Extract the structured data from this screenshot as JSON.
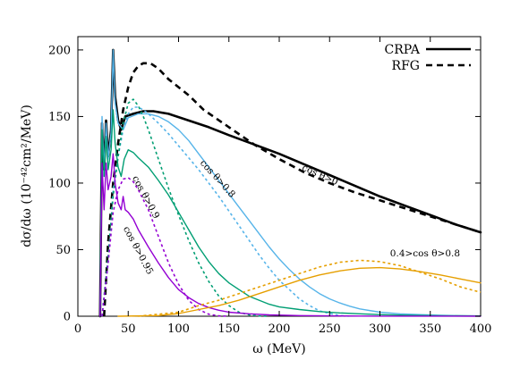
{
  "chart_data": {
    "type": "line",
    "xlabel": "ω (MeV)",
    "ylabel": "dσ/dω (10⁻⁴²cm²/MeV)",
    "xlim": [
      0,
      400
    ],
    "ylim": [
      0,
      210
    ],
    "xticks": [
      0,
      50,
      100,
      150,
      200,
      250,
      300,
      350,
      400
    ],
    "yticks": [
      0,
      50,
      100,
      150,
      200
    ],
    "grid": false,
    "legend_position": "top-right",
    "legend": [
      {
        "label": "CRPA",
        "style": "solid"
      },
      {
        "label": "RFG",
        "style": "dashed"
      }
    ],
    "annotations": [
      {
        "text": "cos θ>0",
        "x": 222,
        "y": 110,
        "rotate": 24
      },
      {
        "text": "cos θ>0.8",
        "x": 121,
        "y": 115,
        "rotate": 48
      },
      {
        "text": "cos θ>0.9",
        "x": 54,
        "y": 104,
        "rotate": 62
      },
      {
        "text": "cos θ>0.95",
        "x": 45,
        "y": 66,
        "rotate": 62
      },
      {
        "text": "0.4>cos θ>0.8",
        "x": 310,
        "y": 45,
        "rotate": 0
      }
    ],
    "series": [
      {
        "label": "cos θ>0",
        "model": "CRPA",
        "color": "#000000",
        "style": "solid",
        "width": 2.6,
        "points": [
          [
            22,
            0
          ],
          [
            24,
            145
          ],
          [
            26,
            110
          ],
          [
            28,
            147
          ],
          [
            30,
            120
          ],
          [
            33,
            140
          ],
          [
            35,
            200
          ],
          [
            37,
            165
          ],
          [
            40,
            147
          ],
          [
            43,
            140
          ],
          [
            47,
            150
          ],
          [
            55,
            152
          ],
          [
            65,
            154
          ],
          [
            75,
            154
          ],
          [
            90,
            152
          ],
          [
            110,
            147
          ],
          [
            130,
            142
          ],
          [
            150,
            136
          ],
          [
            175,
            129
          ],
          [
            200,
            122
          ],
          [
            225,
            114
          ],
          [
            250,
            106
          ],
          [
            275,
            98
          ],
          [
            300,
            90
          ],
          [
            325,
            83
          ],
          [
            350,
            76
          ],
          [
            375,
            69
          ],
          [
            400,
            63
          ]
        ]
      },
      {
        "label": "cos θ>0",
        "model": "RFG",
        "color": "#000000",
        "style": "dashed",
        "width": 2.6,
        "points": [
          [
            26,
            0
          ],
          [
            30,
            55
          ],
          [
            35,
            100
          ],
          [
            40,
            130
          ],
          [
            45,
            155
          ],
          [
            50,
            172
          ],
          [
            55,
            183
          ],
          [
            60,
            188
          ],
          [
            65,
            190
          ],
          [
            72,
            190
          ],
          [
            80,
            186
          ],
          [
            90,
            178
          ],
          [
            100,
            172
          ],
          [
            110,
            166
          ],
          [
            125,
            155
          ],
          [
            150,
            142
          ],
          [
            175,
            129
          ],
          [
            200,
            118
          ],
          [
            225,
            108
          ],
          [
            250,
            100
          ],
          [
            275,
            93
          ],
          [
            300,
            87
          ],
          [
            325,
            81
          ],
          [
            350,
            75
          ],
          [
            375,
            69
          ],
          [
            400,
            63
          ]
        ]
      },
      {
        "label": "cos θ>0.8",
        "model": "CRPA",
        "color": "#56B4E9",
        "style": "solid",
        "width": 1.4,
        "points": [
          [
            22,
            0
          ],
          [
            24,
            150
          ],
          [
            26,
            110
          ],
          [
            28,
            145
          ],
          [
            30,
            118
          ],
          [
            33,
            138
          ],
          [
            35,
            200
          ],
          [
            37,
            160
          ],
          [
            40,
            145
          ],
          [
            45,
            140
          ],
          [
            50,
            149
          ],
          [
            60,
            152
          ],
          [
            70,
            152
          ],
          [
            80,
            150
          ],
          [
            90,
            146
          ],
          [
            100,
            140
          ],
          [
            110,
            132
          ],
          [
            120,
            122
          ],
          [
            130,
            112
          ],
          [
            140,
            102
          ],
          [
            150,
            92
          ],
          [
            160,
            82
          ],
          [
            170,
            72
          ],
          [
            180,
            62
          ],
          [
            190,
            52
          ],
          [
            200,
            43
          ],
          [
            210,
            35
          ],
          [
            220,
            28
          ],
          [
            230,
            22
          ],
          [
            240,
            17
          ],
          [
            250,
            13
          ],
          [
            260,
            10
          ],
          [
            270,
            7.5
          ],
          [
            280,
            5.5
          ],
          [
            300,
            3
          ],
          [
            320,
            1.8
          ],
          [
            340,
            1.2
          ],
          [
            360,
            0.7
          ],
          [
            380,
            0.4
          ],
          [
            400,
            0.2
          ]
        ]
      },
      {
        "label": "cos θ>0.8",
        "model": "RFG",
        "color": "#56B4E9",
        "style": "dotted",
        "width": 1.6,
        "points": [
          [
            24,
            0
          ],
          [
            30,
            40
          ],
          [
            35,
            95
          ],
          [
            40,
            120
          ],
          [
            45,
            140
          ],
          [
            50,
            152
          ],
          [
            55,
            157
          ],
          [
            60,
            157
          ],
          [
            65,
            155
          ],
          [
            70,
            152
          ],
          [
            80,
            145
          ],
          [
            90,
            137
          ],
          [
            100,
            128
          ],
          [
            110,
            119
          ],
          [
            120,
            110
          ],
          [
            130,
            100
          ],
          [
            140,
            90
          ],
          [
            150,
            79
          ],
          [
            160,
            68
          ],
          [
            170,
            57
          ],
          [
            180,
            46
          ],
          [
            190,
            36
          ],
          [
            200,
            27
          ],
          [
            210,
            20
          ],
          [
            220,
            13
          ],
          [
            230,
            8
          ],
          [
            240,
            4
          ],
          [
            250,
            2
          ],
          [
            260,
            0.5
          ],
          [
            270,
            0
          ]
        ]
      },
      {
        "label": "cos θ>0.9",
        "model": "CRPA",
        "color": "#009E73",
        "style": "solid",
        "width": 1.4,
        "points": [
          [
            22,
            0
          ],
          [
            24,
            140
          ],
          [
            26,
            105
          ],
          [
            28,
            135
          ],
          [
            30,
            110
          ],
          [
            33,
            125
          ],
          [
            35,
            155
          ],
          [
            37,
            130
          ],
          [
            40,
            112
          ],
          [
            43,
            105
          ],
          [
            46,
            118
          ],
          [
            50,
            125
          ],
          [
            55,
            123
          ],
          [
            60,
            119
          ],
          [
            70,
            112
          ],
          [
            80,
            102
          ],
          [
            90,
            91
          ],
          [
            100,
            78
          ],
          [
            110,
            65
          ],
          [
            120,
            52
          ],
          [
            130,
            41
          ],
          [
            140,
            32
          ],
          [
            150,
            25
          ],
          [
            160,
            20
          ],
          [
            170,
            15
          ],
          [
            180,
            12
          ],
          [
            190,
            9
          ],
          [
            200,
            7
          ],
          [
            220,
            5
          ],
          [
            240,
            3.5
          ],
          [
            260,
            2.5
          ],
          [
            280,
            1.8
          ],
          [
            300,
            1.2
          ],
          [
            330,
            0.7
          ],
          [
            360,
            0.4
          ],
          [
            400,
            0.2
          ]
        ]
      },
      {
        "label": "cos θ>0.9",
        "model": "RFG",
        "color": "#009E73",
        "style": "dotted",
        "width": 1.6,
        "points": [
          [
            24,
            0
          ],
          [
            30,
            45
          ],
          [
            35,
            90
          ],
          [
            40,
            120
          ],
          [
            45,
            145
          ],
          [
            50,
            160
          ],
          [
            55,
            163
          ],
          [
            60,
            158
          ],
          [
            65,
            150
          ],
          [
            70,
            140
          ],
          [
            80,
            118
          ],
          [
            90,
            96
          ],
          [
            100,
            76
          ],
          [
            110,
            57
          ],
          [
            120,
            40
          ],
          [
            130,
            26
          ],
          [
            140,
            15
          ],
          [
            150,
            8
          ],
          [
            160,
            3
          ],
          [
            170,
            1
          ],
          [
            180,
            0.2
          ],
          [
            190,
            0
          ]
        ]
      },
      {
        "label": "cos θ>0.95",
        "model": "CRPA",
        "color": "#9400D3",
        "style": "solid",
        "width": 1.4,
        "points": [
          [
            22,
            0
          ],
          [
            24,
            115
          ],
          [
            26,
            80
          ],
          [
            28,
            115
          ],
          [
            30,
            95
          ],
          [
            33,
            105
          ],
          [
            35,
            122
          ],
          [
            37,
            100
          ],
          [
            40,
            85
          ],
          [
            43,
            80
          ],
          [
            45,
            90
          ],
          [
            47,
            80
          ],
          [
            50,
            78
          ],
          [
            55,
            73
          ],
          [
            60,
            65
          ],
          [
            70,
            52
          ],
          [
            80,
            40
          ],
          [
            90,
            29
          ],
          [
            100,
            20
          ],
          [
            110,
            14
          ],
          [
            120,
            9.5
          ],
          [
            130,
            6.5
          ],
          [
            140,
            4.5
          ],
          [
            150,
            3
          ],
          [
            170,
            1.8
          ],
          [
            190,
            1
          ],
          [
            220,
            0.5
          ],
          [
            260,
            0.2
          ],
          [
            300,
            0.1
          ],
          [
            400,
            0
          ]
        ]
      },
      {
        "label": "cos θ>0.95",
        "model": "RFG",
        "color": "#9400D3",
        "style": "dotted",
        "width": 1.6,
        "points": [
          [
            24,
            0
          ],
          [
            30,
            40
          ],
          [
            35,
            78
          ],
          [
            40,
            95
          ],
          [
            45,
            103
          ],
          [
            50,
            104
          ],
          [
            55,
            101
          ],
          [
            60,
            95
          ],
          [
            70,
            80
          ],
          [
            80,
            60
          ],
          [
            90,
            40
          ],
          [
            100,
            24
          ],
          [
            110,
            12
          ],
          [
            120,
            5
          ],
          [
            130,
            1.5
          ],
          [
            140,
            0.3
          ],
          [
            150,
            0
          ]
        ]
      },
      {
        "label": "0.4>cos θ>0.8",
        "model": "CRPA",
        "color": "#E69F00",
        "style": "solid",
        "width": 1.4,
        "points": [
          [
            40,
            0
          ],
          [
            80,
            0.5
          ],
          [
            100,
            2
          ],
          [
            120,
            5
          ],
          [
            140,
            8
          ],
          [
            160,
            12
          ],
          [
            180,
            17
          ],
          [
            200,
            22
          ],
          [
            220,
            27
          ],
          [
            240,
            31
          ],
          [
            260,
            34
          ],
          [
            280,
            36
          ],
          [
            300,
            36.5
          ],
          [
            320,
            35.5
          ],
          [
            340,
            33.5
          ],
          [
            360,
            31
          ],
          [
            380,
            28
          ],
          [
            400,
            25
          ]
        ]
      },
      {
        "label": "0.4>cos θ>0.8",
        "model": "RFG",
        "color": "#E69F00",
        "style": "dotted",
        "width": 1.6,
        "points": [
          [
            60,
            0
          ],
          [
            100,
            3
          ],
          [
            120,
            8
          ],
          [
            140,
            12
          ],
          [
            160,
            17
          ],
          [
            180,
            22
          ],
          [
            200,
            27
          ],
          [
            220,
            32
          ],
          [
            240,
            37
          ],
          [
            260,
            40.5
          ],
          [
            280,
            42
          ],
          [
            300,
            41
          ],
          [
            320,
            38
          ],
          [
            340,
            33
          ],
          [
            360,
            28
          ],
          [
            380,
            22
          ],
          [
            400,
            18
          ]
        ]
      }
    ]
  }
}
